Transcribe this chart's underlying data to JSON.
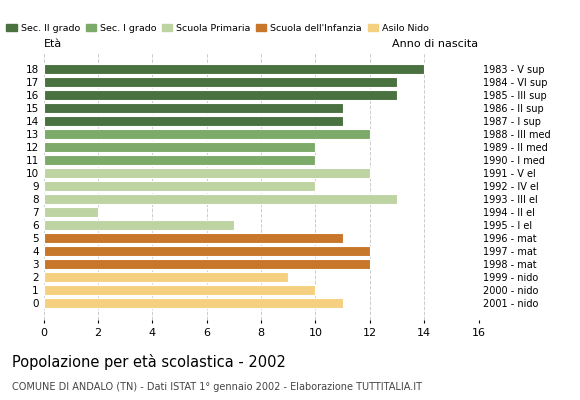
{
  "ages": [
    18,
    17,
    16,
    15,
    14,
    13,
    12,
    11,
    10,
    9,
    8,
    7,
    6,
    5,
    4,
    3,
    2,
    1,
    0
  ],
  "values": [
    14,
    13,
    13,
    11,
    11,
    12,
    10,
    10,
    12,
    10,
    13,
    2,
    7,
    11,
    12,
    12,
    9,
    10,
    11
  ],
  "years": [
    "1983 - V sup",
    "1984 - VI sup",
    "1985 - III sup",
    "1986 - II sup",
    "1987 - I sup",
    "1988 - III med",
    "1989 - II med",
    "1990 - I med",
    "1991 - V el",
    "1992 - IV el",
    "1993 - III el",
    "1994 - II el",
    "1995 - I el",
    "1996 - mat",
    "1997 - mat",
    "1998 - mat",
    "1999 - nido",
    "2000 - nido",
    "2001 - nido"
  ],
  "colors": {
    "Sec. II grado": "#4a7240",
    "Sec. I grado": "#7caa68",
    "Scuola Primaria": "#bdd4a2",
    "Scuola dell'Infanzia": "#c8762a",
    "Asilo Nido": "#f5d080"
  },
  "bar_colors": [
    "#4a7240",
    "#4a7240",
    "#4a7240",
    "#4a7240",
    "#4a7240",
    "#7caa68",
    "#7caa68",
    "#7caa68",
    "#bdd4a2",
    "#bdd4a2",
    "#bdd4a2",
    "#bdd4a2",
    "#bdd4a2",
    "#c8762a",
    "#c8762a",
    "#c8762a",
    "#f5d080",
    "#f5d080",
    "#f5d080"
  ],
  "title": "Popolazione per età scolastica - 2002",
  "subtitle": "COMUNE DI ANDALO (TN) - Dati ISTAT 1° gennaio 2002 - Elaborazione TUTTITALIA.IT",
  "ylabel_left": "Età",
  "ylabel_right": "Anno di nascita",
  "xlim": [
    0,
    16
  ],
  "background_color": "#ffffff",
  "grid_color": "#cccccc"
}
